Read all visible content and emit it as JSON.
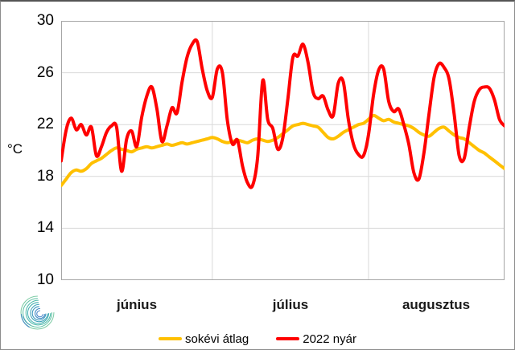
{
  "chart_data": {
    "type": "line",
    "title": "",
    "y_axis": {
      "label": "°C",
      "min": 10,
      "max": 30,
      "tick_interval": 4,
      "tick_labels": [
        "30",
        "26",
        "22",
        "18",
        "14",
        "10"
      ],
      "gridline_values": [
        26,
        22,
        18,
        14
      ]
    },
    "x_axis": {
      "months": [
        {
          "label": "június",
          "days": 30
        },
        {
          "label": "július",
          "days": 31
        },
        {
          "label": "augusztus",
          "days": 28
        }
      ],
      "gridline_day_indices": [
        30,
        61
      ]
    },
    "style": {
      "background": "#FFFFFF",
      "grid_color": "#D9D9D9",
      "plot_border_color": "#A6A6A6",
      "line_width": 4
    },
    "series": [
      {
        "name": "sokévi átlag",
        "color": "#FFC000",
        "values": [
          17.3,
          17.8,
          18.3,
          18.5,
          18.4,
          18.6,
          19.0,
          19.2,
          19.4,
          19.7,
          20.0,
          20.2,
          20.1,
          20.0,
          19.9,
          20.1,
          20.2,
          20.3,
          20.2,
          20.3,
          20.4,
          20.5,
          20.4,
          20.5,
          20.6,
          20.5,
          20.6,
          20.7,
          20.8,
          20.9,
          21.0,
          20.9,
          20.7,
          20.6,
          20.7,
          20.8,
          20.7,
          20.6,
          20.8,
          20.9,
          20.8,
          20.7,
          20.8,
          21.0,
          21.3,
          21.6,
          21.9,
          22.0,
          22.1,
          22.0,
          21.9,
          21.8,
          21.4,
          21.0,
          20.9,
          21.1,
          21.4,
          21.6,
          21.8,
          22.0,
          22.1,
          22.4,
          22.7,
          22.5,
          22.3,
          22.4,
          22.2,
          22.1,
          22.0,
          21.9,
          21.7,
          21.4,
          21.2,
          21.1,
          21.4,
          21.7,
          21.8,
          21.5,
          21.2,
          21.0,
          20.9,
          20.6,
          20.3,
          20.0,
          19.8,
          19.5,
          19.2,
          18.9,
          18.6
        ]
      },
      {
        "name": "2022 nyár",
        "color": "#FF0000",
        "values": [
          19.2,
          21.6,
          22.5,
          21.6,
          22.0,
          21.2,
          21.8,
          19.6,
          20.3,
          21.4,
          21.9,
          21.8,
          18.4,
          20.9,
          21.5,
          20.3,
          22.6,
          24.2,
          24.9,
          23.2,
          20.7,
          21.9,
          23.3,
          22.9,
          25.3,
          27.2,
          28.2,
          28.4,
          26.3,
          24.6,
          24.1,
          26.3,
          26.0,
          22.3,
          20.5,
          20.8,
          18.8,
          17.5,
          17.3,
          19.5,
          25.4,
          22.4,
          21.7,
          20.1,
          21.0,
          24.0,
          27.2,
          27.3,
          28.2,
          26.8,
          24.5,
          24.0,
          24.2,
          23.1,
          22.7,
          25.2,
          25.3,
          22.4,
          20.5,
          19.7,
          19.6,
          21.2,
          24.3,
          26.2,
          26.3,
          23.8,
          23.0,
          23.2,
          22.0,
          20.5,
          18.3,
          17.8,
          19.8,
          22.8,
          25.6,
          26.7,
          26.4,
          25.5,
          22.8,
          19.6,
          19.4,
          21.8,
          23.8,
          24.7,
          24.9,
          24.8,
          23.9,
          22.4,
          21.9
        ]
      }
    ],
    "legend_position": "bottom"
  },
  "logo": {
    "icon": "spiral-swirl-logo",
    "colors": [
      "#7ccba4",
      "#5fc2a4",
      "#49b8a8",
      "#3dadae",
      "#39a2b6",
      "#3a96be",
      "#3e8ac4",
      "#4480c6"
    ]
  }
}
